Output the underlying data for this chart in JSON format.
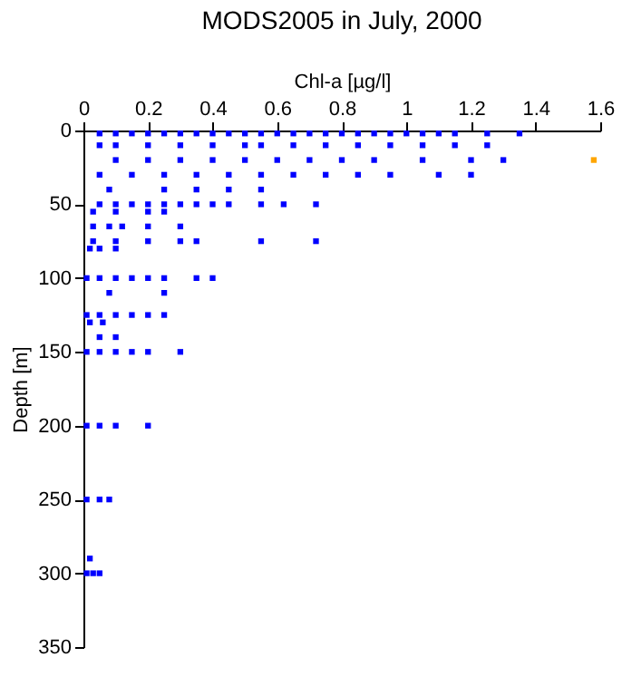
{
  "chart_data": {
    "type": "scatter",
    "title": "MODS2005 in July, 2000",
    "xlabel": "Chl-a [µg/l]",
    "ylabel": "Depth [m]",
    "xlim": [
      0,
      1.6
    ],
    "xticks": [
      0,
      0.2,
      0.4,
      0.6,
      0.8,
      1,
      1.2,
      1.4,
      1.6
    ],
    "ylim": [
      350,
      0
    ],
    "yticks": [
      0,
      50,
      100,
      150,
      200,
      250,
      300,
      350
    ],
    "marker": "square",
    "grid": false,
    "legend": false,
    "series": [
      {
        "color": "#0000ff",
        "x": [
          0.05,
          0.1,
          0.15,
          0.2,
          0.25,
          0.3,
          0.35,
          0.4,
          0.45,
          0.5,
          0.55,
          0.6,
          0.65,
          0.7,
          0.75,
          0.8,
          0.85,
          0.9,
          0.95,
          1.0,
          1.05,
          1.1,
          1.15,
          1.25,
          1.35,
          0.05,
          0.1,
          0.2,
          0.3,
          0.4,
          0.5,
          0.55,
          0.65,
          0.75,
          0.85,
          0.95,
          1.05,
          1.15,
          1.25,
          0.1,
          0.2,
          0.3,
          0.4,
          0.5,
          0.6,
          0.7,
          0.8,
          0.9,
          1.05,
          1.2,
          1.3,
          0.05,
          0.15,
          0.25,
          0.35,
          0.45,
          0.55,
          0.65,
          0.75,
          0.85,
          0.95,
          1.1,
          1.2,
          0.08,
          0.25,
          0.35,
          0.45,
          0.55,
          0.05,
          0.1,
          0.15,
          0.2,
          0.25,
          0.3,
          0.35,
          0.4,
          0.45,
          0.55,
          0.62,
          0.72,
          0.03,
          0.1,
          0.2,
          0.25,
          0.03,
          0.08,
          0.12,
          0.2,
          0.3,
          0.03,
          0.1,
          0.2,
          0.3,
          0.35,
          0.55,
          0.72,
          0.02,
          0.05,
          0.1,
          0.01,
          0.05,
          0.1,
          0.15,
          0.2,
          0.25,
          0.35,
          0.4,
          0.08,
          0.25,
          0.01,
          0.05,
          0.1,
          0.15,
          0.2,
          0.25,
          0.02,
          0.06,
          0.05,
          0.1,
          0.01,
          0.05,
          0.1,
          0.15,
          0.2,
          0.3,
          0.01,
          0.05,
          0.1,
          0.2,
          0.01,
          0.05,
          0.08,
          0.02,
          0.01,
          0.03,
          0.05
        ],
        "values": [
          2,
          2,
          2,
          2,
          2,
          2,
          2,
          2,
          2,
          2,
          2,
          2,
          2,
          2,
          2,
          2,
          2,
          2,
          2,
          2,
          2,
          2,
          2,
          2,
          2,
          10,
          10,
          10,
          10,
          10,
          10,
          10,
          10,
          10,
          10,
          10,
          10,
          10,
          10,
          20,
          20,
          20,
          20,
          20,
          20,
          20,
          20,
          20,
          20,
          20,
          20,
          30,
          30,
          30,
          30,
          30,
          30,
          30,
          30,
          30,
          30,
          30,
          30,
          40,
          40,
          40,
          40,
          40,
          50,
          50,
          50,
          50,
          50,
          50,
          50,
          50,
          50,
          50,
          50,
          50,
          55,
          55,
          55,
          55,
          65,
          65,
          65,
          65,
          65,
          75,
          75,
          75,
          75,
          75,
          75,
          75,
          80,
          80,
          80,
          100,
          100,
          100,
          100,
          100,
          100,
          100,
          100,
          110,
          110,
          125,
          125,
          125,
          125,
          125,
          125,
          130,
          130,
          140,
          140,
          150,
          150,
          150,
          150,
          150,
          150,
          200,
          200,
          200,
          200,
          250,
          250,
          250,
          290,
          300,
          300,
          300
        ]
      },
      {
        "color": "#ffa500",
        "x": [
          1.58
        ],
        "values": [
          20
        ]
      }
    ]
  }
}
